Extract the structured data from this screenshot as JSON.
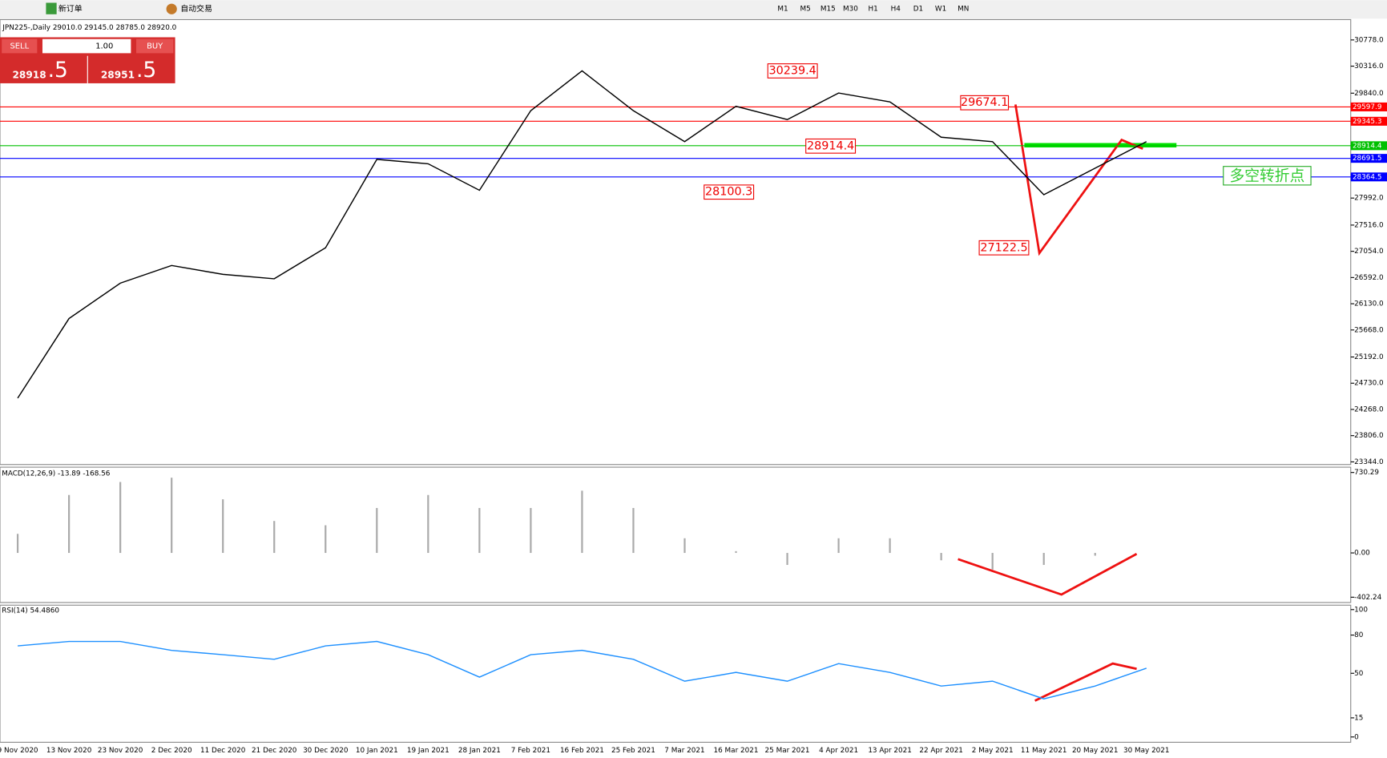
{
  "toolbar": {
    "new_order": "新订单",
    "auto_trading": "自动交易",
    "timeframes": [
      "M1",
      "M5",
      "M15",
      "M30",
      "H1",
      "H4",
      "D1",
      "W1",
      "MN"
    ]
  },
  "trade_panel": {
    "sell": "SELL",
    "buy": "BUY",
    "lots": "1.00",
    "bid_main": "28918",
    "bid_pip": ".5",
    "ask_main": "28951",
    "ask_pip": ".5"
  },
  "chart": {
    "header": "JPN225-,Daily  29010.0 29145.0 28785.0 28920.0",
    "ylim": [
      23344,
      30778
    ],
    "yticks": [
      {
        "value": 30778,
        "label": "30778.0"
      },
      {
        "value": 30316,
        "label": "30316.0"
      },
      {
        "value": 29840,
        "label": "29840.0"
      },
      {
        "value": 27992,
        "label": "27992.0"
      },
      {
        "value": 27516,
        "label": "27516.0"
      },
      {
        "value": 27054,
        "label": "27054.0"
      },
      {
        "value": 26592,
        "label": "26592.0"
      },
      {
        "value": 26130,
        "label": "26130.0"
      },
      {
        "value": 25668,
        "label": "25668.0"
      },
      {
        "value": 25192,
        "label": "25192.0"
      },
      {
        "value": 24730,
        "label": "24730.0"
      },
      {
        "value": 24268,
        "label": "24268.0"
      },
      {
        "value": 23806,
        "label": "23806.0"
      },
      {
        "value": 23344,
        "label": "23344.0"
      }
    ],
    "levels": [
      {
        "value": 29597.9,
        "label": "29597.9",
        "color": "#ff0000"
      },
      {
        "value": 29345.3,
        "label": "29345.3",
        "color": "#ff0000"
      },
      {
        "value": 28914.4,
        "label": "28914.4",
        "color": "#00c000"
      },
      {
        "value": 28691.5,
        "label": "28691.5",
        "color": "#0000ff"
      },
      {
        "value": 28364.5,
        "label": "28364.5",
        "color": "#0000ff"
      }
    ],
    "annotations": [
      "30239.4",
      "29674.1",
      "28914.4",
      "28100.3",
      "27122.5",
      "多空转折点"
    ],
    "dates": [
      "9 Nov 2020",
      "13 Nov 2020",
      "23 Nov 2020",
      "2 Dec 2020",
      "11 Dec 2020",
      "21 Dec 2020",
      "30 Dec 2020",
      "10 Jan 2021",
      "19 Jan 2021",
      "28 Jan 2021",
      "7 Feb 2021",
      "16 Feb 2021",
      "25 Feb 2021",
      "7 Mar 2021",
      "16 Mar 2021",
      "25 Mar 2021",
      "4 Apr 2021",
      "13 Apr 2021",
      "22 Apr 2021",
      "2 May 2021",
      "11 May 2021",
      "20 May 2021",
      "30 May 2021"
    ],
    "x": [
      0,
      7,
      14,
      21,
      28,
      35,
      42,
      49,
      56,
      63,
      70,
      77,
      84,
      91,
      98,
      105,
      112,
      119,
      126,
      133,
      140,
      147,
      154
    ],
    "closes": [
      24467,
      25869,
      26493,
      26804,
      26648,
      26570,
      27116,
      28674,
      28596,
      28129,
      29531,
      30233,
      29531,
      28986,
      29609,
      29375,
      29843,
      29687,
      29064,
      28986,
      28051,
      28519,
      28986
    ]
  },
  "macd": {
    "label": "MACD(12,26,9) -13.89 -168.56",
    "ylim": [
      -402.24,
      730.29
    ],
    "yticks": [
      {
        "value": 730.29,
        "label": "730.29"
      },
      {
        "value": 0,
        "label": "0.00"
      },
      {
        "value": -402.24,
        "label": "-402.24"
      }
    ],
    "values": [
      173,
      526,
      644,
      683,
      487,
      290,
      251,
      408,
      526,
      408,
      408,
      565,
      408,
      133,
      16,
      -109,
      133,
      133,
      -67,
      -151,
      -109,
      -25,
      0
    ]
  },
  "rsi": {
    "label": "RSI(14) 54.4860",
    "ylim": [
      0,
      100
    ],
    "yticks": [
      100,
      80,
      50,
      15,
      0
    ],
    "values": [
      71.5,
      75,
      75,
      68,
      64.6,
      61,
      71.5,
      75,
      64.6,
      47,
      64.6,
      68,
      61,
      43.8,
      50.7,
      43.8,
      57.6,
      50.7,
      40,
      43.8,
      29.9,
      40,
      54
    ]
  }
}
